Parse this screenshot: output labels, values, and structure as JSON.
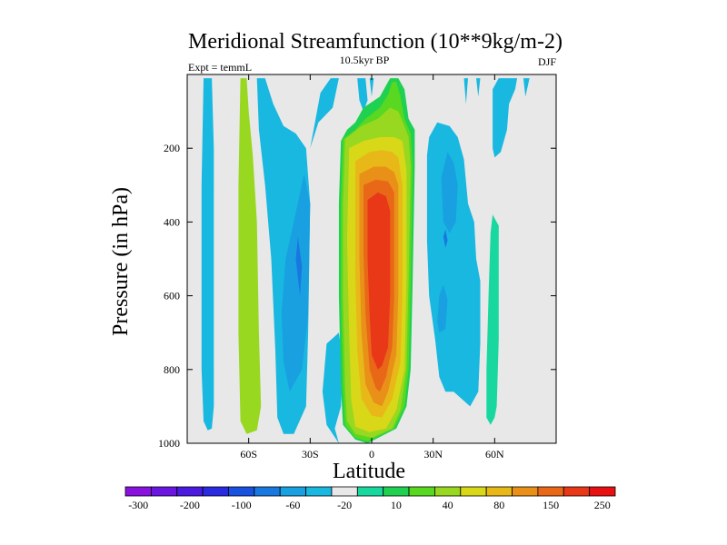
{
  "chart_data": {
    "type": "contour",
    "title": "Meridional Streamfunction (10**9kg/m-2)",
    "subtitle": "10.5kyr BP",
    "left_label": "Expt = temmL",
    "right_label": "DJF",
    "xlabel": "Latitude",
    "ylabel": "Pressure (in hPa)",
    "xlim": [
      -90,
      90
    ],
    "ylim": [
      0,
      1000
    ],
    "y_inverted": true,
    "x_ticks": [
      {
        "value": -60,
        "label": "60S"
      },
      {
        "value": -30,
        "label": "30S"
      },
      {
        "value": 0,
        "label": "0"
      },
      {
        "value": 30,
        "label": "30N"
      },
      {
        "value": 60,
        "label": "60N"
      }
    ],
    "y_ticks": [
      {
        "value": 200,
        "label": "200"
      },
      {
        "value": 400,
        "label": "400"
      },
      {
        "value": 600,
        "label": "600"
      },
      {
        "value": 800,
        "label": "800"
      },
      {
        "value": 1000,
        "label": "1000"
      }
    ],
    "background_color": "#e8e8e8",
    "colorbar": {
      "colors": [
        "#8a12e0",
        "#6a16e0",
        "#4a1ae0",
        "#2a2ae0",
        "#1850e0",
        "#1878e0",
        "#18a0e0",
        "#18b8e0",
        "#e8e8e8",
        "#18d8a0",
        "#20d050",
        "#58d820",
        "#98d820",
        "#d8d818",
        "#e8b818",
        "#e89018",
        "#e86818",
        "#e83818",
        "#e81010"
      ],
      "labels": [
        "-300",
        "-200",
        "-100",
        "-60",
        "-20",
        "10",
        "40",
        "80",
        "150",
        "250"
      ],
      "label_positions": [
        0.5,
        2.5,
        4.5,
        6.5,
        8.5,
        10.5,
        12.5,
        14.5,
        16.5,
        18.5
      ]
    },
    "cells": [
      {
        "level": 7,
        "points": [
          [
            -81,
            10
          ],
          [
            -78,
            10
          ],
          [
            -77,
            200
          ],
          [
            -77,
            900
          ],
          [
            -78,
            960
          ],
          [
            -80,
            965
          ],
          [
            -82,
            940
          ],
          [
            -83,
            800
          ],
          [
            -83,
            300
          ],
          [
            -82,
            10
          ]
        ]
      },
      {
        "level": 12,
        "points": [
          [
            -64,
            10
          ],
          [
            -61,
            10
          ],
          [
            -60,
            100
          ],
          [
            -58,
            220
          ],
          [
            -56,
            400
          ],
          [
            -55,
            700
          ],
          [
            -54,
            900
          ],
          [
            -56,
            965
          ],
          [
            -61,
            975
          ],
          [
            -64,
            940
          ],
          [
            -65,
            700
          ],
          [
            -65,
            300
          ]
        ]
      },
      {
        "level": 7,
        "points": [
          [
            -56,
            10
          ],
          [
            -52,
            10
          ],
          [
            -48,
            80
          ],
          [
            -43,
            140
          ],
          [
            -37,
            160
          ],
          [
            -32,
            200
          ],
          [
            -30,
            350
          ],
          [
            -31,
            700
          ],
          [
            -32,
            900
          ],
          [
            -38,
            975
          ],
          [
            -43,
            975
          ],
          [
            -46,
            930
          ],
          [
            -47,
            750
          ],
          [
            -49,
            500
          ],
          [
            -52,
            300
          ],
          [
            -55,
            150
          ]
        ]
      },
      {
        "level": 6,
        "points": [
          [
            -42,
            500
          ],
          [
            -38,
            400
          ],
          [
            -33,
            270
          ],
          [
            -30,
            350
          ],
          [
            -31,
            650
          ],
          [
            -34,
            800
          ],
          [
            -40,
            860
          ],
          [
            -43,
            780
          ],
          [
            -44,
            650
          ]
        ]
      },
      {
        "level": 5,
        "points": [
          [
            -37,
            500
          ],
          [
            -36,
            440
          ],
          [
            -34,
            520
          ],
          [
            -35,
            600
          ]
        ]
      },
      {
        "level": 7,
        "points": [
          [
            -30,
            200
          ],
          [
            -25,
            50
          ],
          [
            -20,
            10
          ],
          [
            -16,
            10
          ],
          [
            -19,
            90
          ],
          [
            -26,
            130
          ]
        ]
      },
      {
        "level": 7,
        "points": [
          [
            -7,
            10
          ],
          [
            -3,
            10
          ],
          [
            -2,
            70
          ],
          [
            -4,
            100
          ],
          [
            -6,
            70
          ]
        ]
      },
      {
        "level": 7,
        "points": [
          [
            -16,
            700
          ],
          [
            -14,
            780
          ],
          [
            -15,
            900
          ],
          [
            -18,
            960
          ],
          [
            -16,
            1000
          ],
          [
            -22,
            950
          ],
          [
            -24,
            860
          ],
          [
            -22,
            730
          ]
        ]
      },
      {
        "level": 10,
        "points": [
          [
            -15,
            180
          ],
          [
            -12,
            150
          ],
          [
            -8,
            130
          ],
          [
            -4,
            90
          ],
          [
            4,
            60
          ],
          [
            8,
            20
          ],
          [
            9,
            10
          ],
          [
            13,
            10
          ],
          [
            16,
            40
          ],
          [
            18,
            120
          ],
          [
            21,
            150
          ],
          [
            21,
            250
          ],
          [
            20,
            560
          ],
          [
            19,
            800
          ],
          [
            17,
            900
          ],
          [
            12,
            960
          ],
          [
            -2,
            1000
          ],
          [
            -8,
            990
          ],
          [
            -14,
            950
          ],
          [
            -15,
            850
          ],
          [
            -16,
            600
          ],
          [
            -16,
            350
          ]
        ]
      },
      {
        "level": 11,
        "points": [
          [
            -14,
            175
          ],
          [
            -8,
            150
          ],
          [
            -3,
            120
          ],
          [
            4,
            90
          ],
          [
            8,
            55
          ],
          [
            10,
            20
          ],
          [
            12,
            20
          ],
          [
            14,
            60
          ],
          [
            16,
            120
          ],
          [
            19,
            160
          ],
          [
            20,
            250
          ],
          [
            19,
            560
          ],
          [
            18,
            800
          ],
          [
            16,
            900
          ],
          [
            11,
            960
          ],
          [
            -2,
            995
          ],
          [
            -8,
            985
          ],
          [
            -13,
            950
          ],
          [
            -14,
            850
          ],
          [
            -15,
            600
          ],
          [
            -15,
            350
          ]
        ]
      },
      {
        "level": 12,
        "points": [
          [
            -13,
            175
          ],
          [
            -5,
            140
          ],
          [
            3,
            120
          ],
          [
            9,
            90
          ],
          [
            13,
            100
          ],
          [
            16,
            140
          ],
          [
            18,
            170
          ],
          [
            19,
            250
          ],
          [
            18,
            560
          ],
          [
            17,
            800
          ],
          [
            14,
            910
          ],
          [
            10,
            960
          ],
          [
            0,
            985
          ],
          [
            -8,
            975
          ],
          [
            -12,
            940
          ],
          [
            -13,
            850
          ],
          [
            -14,
            600
          ],
          [
            -14,
            350
          ]
        ]
      },
      {
        "level": 13,
        "points": [
          [
            -11,
            200
          ],
          [
            -4,
            180
          ],
          [
            4,
            170
          ],
          [
            11,
            170
          ],
          [
            15,
            180
          ],
          [
            17,
            260
          ],
          [
            17,
            560
          ],
          [
            16,
            800
          ],
          [
            12,
            910
          ],
          [
            7,
            960
          ],
          [
            -1,
            970
          ],
          [
            -8,
            955
          ],
          [
            -10,
            880
          ],
          [
            -11,
            700
          ],
          [
            -12,
            450
          ]
        ]
      },
      {
        "level": 14,
        "points": [
          [
            -8,
            235
          ],
          [
            -1,
            210
          ],
          [
            5,
            205
          ],
          [
            10,
            210
          ],
          [
            13,
            225
          ],
          [
            15,
            300
          ],
          [
            15,
            600
          ],
          [
            14,
            780
          ],
          [
            10,
            880
          ],
          [
            5,
            930
          ],
          [
            0,
            925
          ],
          [
            -5,
            880
          ],
          [
            -7,
            750
          ],
          [
            -8,
            550
          ]
        ]
      },
      {
        "level": 15,
        "points": [
          [
            -6,
            270
          ],
          [
            1,
            250
          ],
          [
            7,
            250
          ],
          [
            11,
            265
          ],
          [
            13,
            300
          ],
          [
            13,
            600
          ],
          [
            12,
            760
          ],
          [
            8,
            860
          ],
          [
            5,
            900
          ],
          [
            1,
            890
          ],
          [
            -3,
            840
          ],
          [
            -5,
            700
          ],
          [
            -6,
            500
          ]
        ]
      },
      {
        "level": 16,
        "points": [
          [
            -4,
            300
          ],
          [
            2,
            285
          ],
          [
            8,
            290
          ],
          [
            11,
            320
          ],
          [
            11,
            600
          ],
          [
            10,
            740
          ],
          [
            7,
            820
          ],
          [
            4,
            860
          ],
          [
            2,
            850
          ],
          [
            -1,
            800
          ],
          [
            -3,
            650
          ],
          [
            -4,
            480
          ]
        ]
      },
      {
        "level": 17,
        "points": [
          [
            -2,
            340
          ],
          [
            3,
            320
          ],
          [
            7,
            330
          ],
          [
            9,
            370
          ],
          [
            9,
            600
          ],
          [
            8,
            740
          ],
          [
            5,
            790
          ],
          [
            3,
            800
          ],
          [
            0,
            760
          ],
          [
            -1,
            650
          ],
          [
            -2,
            500
          ]
        ]
      },
      {
        "level": 7,
        "points": [
          [
            27,
            220
          ],
          [
            28,
            170
          ],
          [
            32,
            130
          ],
          [
            38,
            140
          ],
          [
            42,
            170
          ],
          [
            45,
            230
          ],
          [
            47,
            350
          ],
          [
            50,
            400
          ],
          [
            51,
            500
          ],
          [
            53,
            560
          ],
          [
            53,
            730
          ],
          [
            52,
            860
          ],
          [
            48,
            900
          ],
          [
            44,
            880
          ],
          [
            40,
            860
          ],
          [
            36,
            860
          ],
          [
            33,
            820
          ],
          [
            31,
            720
          ],
          [
            28,
            600
          ],
          [
            27,
            450
          ]
        ]
      },
      {
        "level": 6,
        "points": [
          [
            34,
            280
          ],
          [
            37,
            210
          ],
          [
            40,
            240
          ],
          [
            42,
            300
          ],
          [
            41,
            400
          ],
          [
            38,
            430
          ],
          [
            35,
            400
          ]
        ]
      },
      {
        "level": 6,
        "points": [
          [
            32,
            670
          ],
          [
            33,
            600
          ],
          [
            35,
            570
          ],
          [
            37,
            610
          ],
          [
            36,
            690
          ],
          [
            33,
            700
          ]
        ]
      },
      {
        "level": 5,
        "points": [
          [
            35,
            440
          ],
          [
            36,
            420
          ],
          [
            37,
            450
          ],
          [
            36,
            470
          ]
        ]
      },
      {
        "level": 7,
        "points": [
          [
            59,
            40
          ],
          [
            62,
            10
          ],
          [
            71,
            10
          ],
          [
            70,
            40
          ],
          [
            67,
            80
          ],
          [
            66,
            150
          ],
          [
            63,
            210
          ],
          [
            60,
            225
          ],
          [
            59,
            200
          ],
          [
            59,
            150
          ]
        ]
      },
      {
        "level": 9,
        "points": [
          [
            58,
            430
          ],
          [
            59,
            380
          ],
          [
            62,
            410
          ],
          [
            62,
            720
          ],
          [
            61,
            900
          ],
          [
            60,
            930
          ],
          [
            58,
            950
          ],
          [
            56,
            930
          ],
          [
            56,
            800
          ],
          [
            57,
            600
          ]
        ]
      },
      {
        "level": 7,
        "points": [
          [
            -1,
            10
          ],
          [
            1,
            10
          ],
          [
            0,
            60
          ]
        ]
      },
      {
        "level": 7,
        "points": [
          [
            45,
            10
          ],
          [
            47,
            10
          ],
          [
            46,
            80
          ]
        ]
      },
      {
        "level": 7,
        "points": [
          [
            51,
            10
          ],
          [
            53,
            10
          ],
          [
            52,
            60
          ]
        ]
      },
      {
        "level": 7,
        "points": [
          [
            74,
            10
          ],
          [
            77,
            10
          ],
          [
            75,
            60
          ]
        ]
      }
    ]
  }
}
